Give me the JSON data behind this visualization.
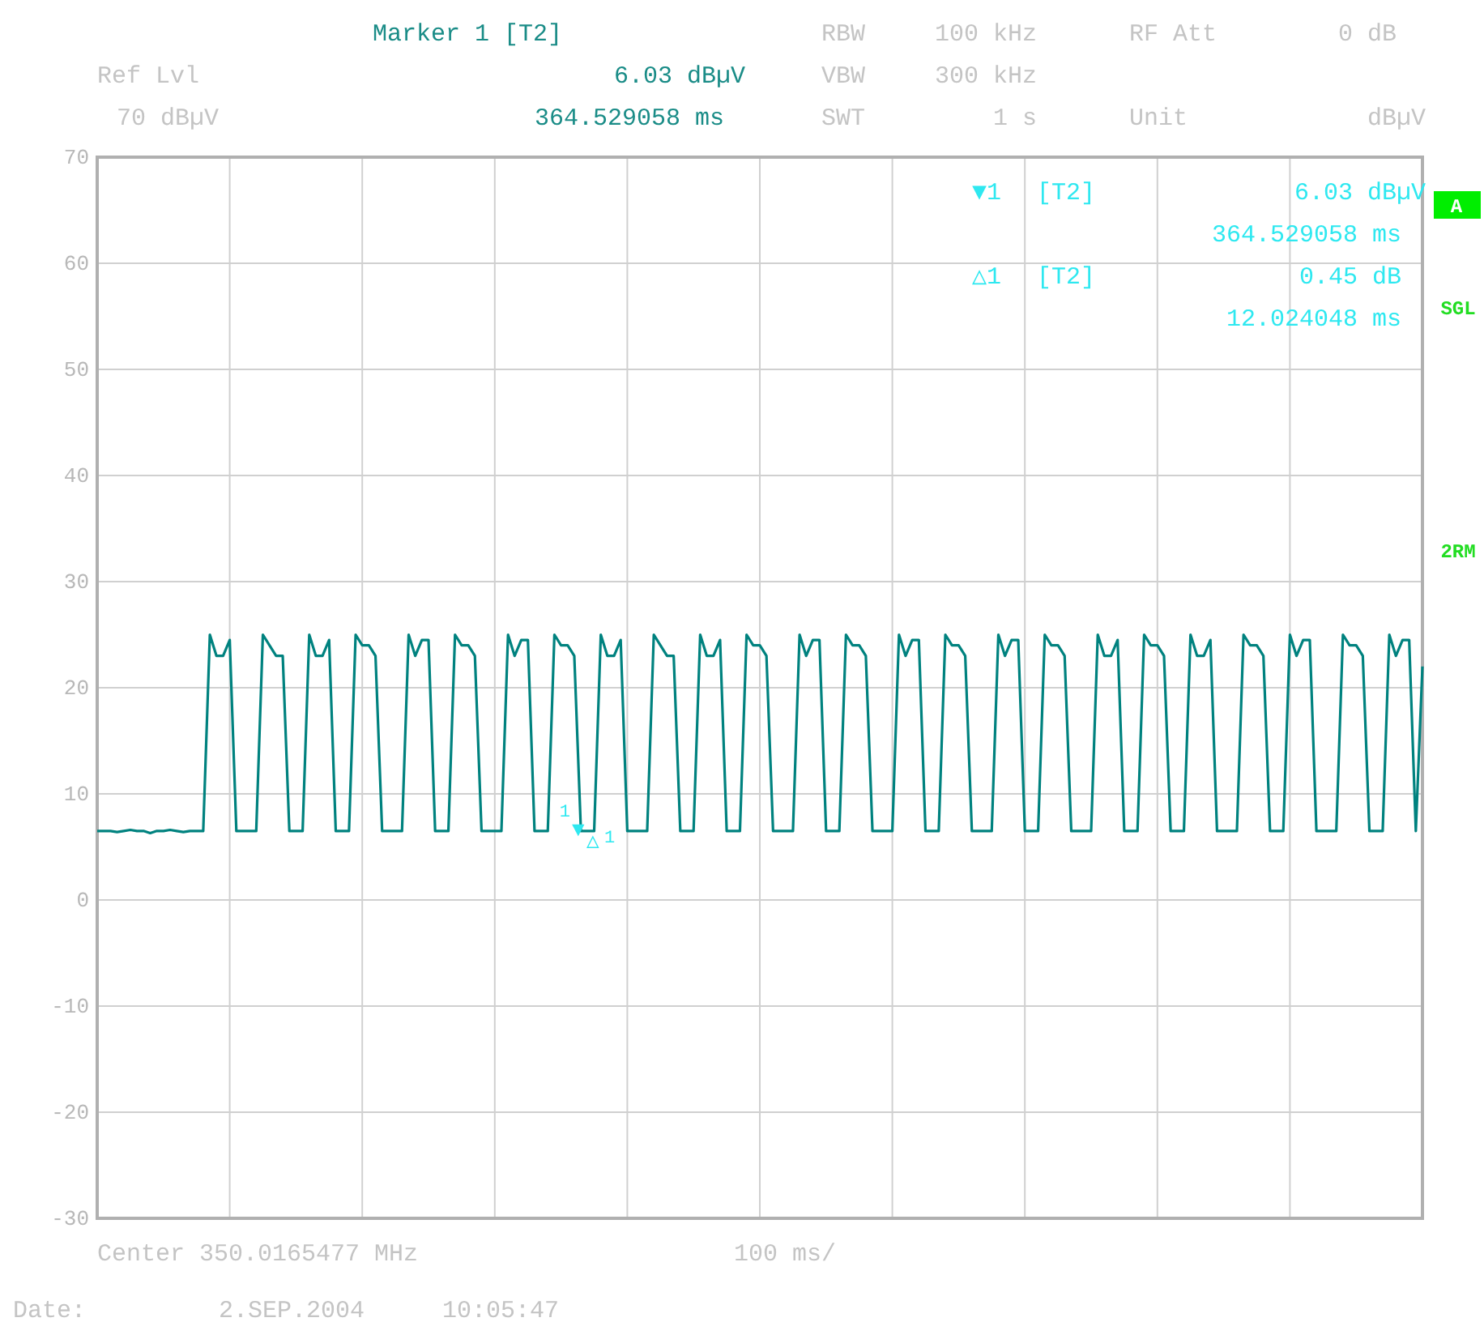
{
  "chart_data": {
    "type": "line",
    "ylim": [
      -30,
      70
    ],
    "categories": [
      null,
      null,
      null,
      null,
      null,
      null,
      null,
      null,
      null,
      null,
      null,
      null,
      null,
      null,
      null,
      null,
      null,
      null,
      null,
      null,
      null,
      null,
      null,
      null,
      null,
      null,
      null,
      null,
      null,
      null,
      null,
      null,
      null,
      null,
      null,
      null,
      null,
      null,
      null,
      null,
      null,
      null,
      null,
      null,
      null,
      null,
      null,
      null,
      null,
      null,
      null,
      null,
      null,
      null,
      null,
      null,
      null,
      null,
      null,
      null,
      null,
      null,
      null,
      null,
      null,
      null,
      null,
      null,
      null,
      null,
      null,
      null,
      null,
      null,
      null,
      null,
      null,
      null,
      null,
      null,
      null,
      null,
      null,
      null,
      null,
      null,
      null,
      null,
      null,
      null,
      null,
      null,
      null,
      null,
      null,
      null,
      null,
      null,
      null,
      null,
      null,
      null,
      null,
      null,
      null,
      null,
      null,
      null,
      null,
      null,
      null,
      null,
      null,
      null,
      null,
      null,
      null,
      null,
      null,
      null,
      null,
      null,
      null,
      null,
      null,
      null,
      null,
      null,
      null,
      null,
      null,
      null,
      null,
      null,
      null,
      null,
      null,
      null,
      null,
      null,
      null,
      null,
      null,
      null,
      null,
      null,
      null,
      null,
      null,
      null,
      null,
      null,
      null,
      null,
      null,
      null,
      null,
      null,
      null,
      null,
      null,
      null,
      null,
      null,
      null,
      null,
      null,
      null,
      null,
      null,
      null,
      null,
      null,
      null,
      null,
      null,
      null,
      null,
      null,
      null,
      null,
      null,
      null,
      null,
      null,
      null,
      null,
      null,
      null,
      null,
      null,
      null,
      null,
      null,
      null,
      null,
      null,
      null,
      null,
      null,
      null
    ],
    "yticks": [
      -30,
      -20,
      -10,
      0,
      10,
      20,
      30,
      40,
      50,
      60,
      70
    ],
    "grid": true,
    "tick_labels": "y",
    "marker": "none",
    "line_style": "solid",
    "series": [
      {
        "color": "#00827f",
        "values": [
          6.5,
          6.5,
          6.5,
          6.4,
          6.5,
          6.6,
          6.5,
          6.5,
          6.3,
          6.5,
          6.5,
          6.6,
          6.5,
          6.4,
          6.5,
          6.5,
          6.5,
          25,
          23,
          23,
          24.5,
          6.5,
          6.5,
          6.5,
          6.5,
          25,
          24,
          23,
          23,
          6.5,
          6.5,
          6.5,
          25,
          23,
          23,
          24.5,
          6.5,
          6.5,
          6.5,
          25,
          24,
          24,
          23,
          6.5,
          6.5,
          6.5,
          6.5,
          25,
          23,
          24.5,
          24.5,
          6.5,
          6.5,
          6.5,
          25,
          24,
          24,
          23,
          6.5,
          6.5,
          6.5,
          6.5,
          25,
          23,
          24.5,
          24.5,
          6.5,
          6.5,
          6.5,
          25,
          24,
          24,
          23,
          6.5,
          6.5,
          6.5,
          25,
          23,
          23,
          24.5,
          6.5,
          6.5,
          6.5,
          6.5,
          25,
          24,
          23,
          23,
          6.5,
          6.5,
          6.5,
          25,
          23,
          23,
          24.5,
          6.5,
          6.5,
          6.5,
          25,
          24,
          24,
          23,
          6.5,
          6.5,
          6.5,
          6.5,
          25,
          23,
          24.5,
          24.5,
          6.5,
          6.5,
          6.5,
          25,
          24,
          24,
          23,
          6.5,
          6.5,
          6.5,
          6.5,
          25,
          23,
          24.5,
          24.5,
          6.5,
          6.5,
          6.5,
          25,
          24,
          24,
          23,
          6.5,
          6.5,
          6.5,
          6.5,
          25,
          23,
          24.5,
          24.5,
          6.5,
          6.5,
          6.5,
          25,
          24,
          24,
          23,
          6.5,
          6.5,
          6.5,
          6.5,
          25,
          23,
          23,
          24.5,
          6.5,
          6.5,
          6.5,
          25,
          24,
          24,
          23,
          6.5,
          6.5,
          6.5,
          25,
          23,
          23,
          24.5,
          6.5,
          6.5,
          6.5,
          6.5,
          25,
          24,
          24,
          23,
          6.5,
          6.5,
          6.5,
          25,
          23,
          24.5,
          24.5,
          6.5,
          6.5,
          6.5,
          6.5,
          25,
          24,
          24,
          23,
          6.5,
          6.5,
          6.5,
          25,
          23,
          24.5,
          24.5,
          6.5,
          22
        ]
      }
    ],
    "annotations": [
      "Marker 1 [T2]",
      "Ref Lvl",
      "6.03 dBµV",
      "70 dBµV",
      "364.529058 ms",
      "RBW",
      "100 kHz",
      "RF Att",
      "0 dB",
      "VBW",
      "300 kHz",
      "SWT",
      "1 s",
      "Unit",
      "dBµV",
      "▼1",
      "[T2]",
      "6.03 dBµV",
      "364.529058 ms",
      "△1",
      "[T2]",
      "0.45 dB",
      "12.024048 ms",
      "A",
      "SGL",
      "2RM",
      "Center 350.0165477 MHz",
      "100 ms/",
      "Date:",
      "2.SEP.2004",
      "10:05:47",
      "▼",
      "△",
      "1",
      "1"
    ]
  }
}
